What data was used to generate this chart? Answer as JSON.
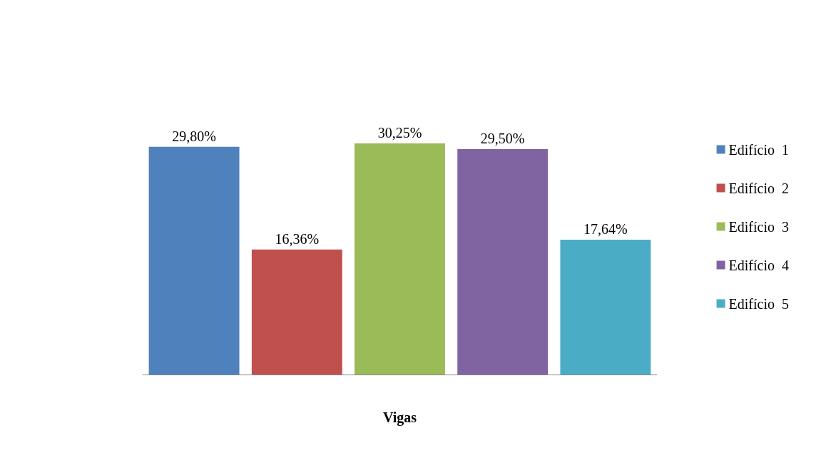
{
  "chart_data": {
    "type": "bar",
    "xlabel": "Vigas",
    "categories": [
      null,
      null,
      null,
      null,
      null
    ],
    "stacked": true,
    "legend": "right",
    "series": [
      {
        "name": "Edifício  1",
        "color": "#4f81bd",
        "values": [
          29.8,
          null,
          null,
          null,
          null
        ],
        "value_labels": [
          "29,80%",
          null,
          null,
          null,
          null
        ]
      },
      {
        "name": "Edifício  2",
        "color": "#c0504d",
        "values": [
          null,
          16.36,
          null,
          null,
          null
        ],
        "value_labels": [
          null,
          "16,36%",
          null,
          null,
          null
        ]
      },
      {
        "name": "Edifício  3",
        "color": "#9bbb59",
        "values": [
          null,
          null,
          30.25,
          null,
          null
        ],
        "value_labels": [
          null,
          null,
          "30,25%",
          null,
          null
        ]
      },
      {
        "name": "Edifício  4",
        "color": "#8064a2",
        "values": [
          null,
          null,
          null,
          29.5,
          null
        ],
        "value_labels": [
          null,
          null,
          null,
          "29,50%",
          null
        ]
      },
      {
        "name": "Edifício  5",
        "color": "#4bacc6",
        "values": [
          null,
          null,
          null,
          null,
          17.64
        ],
        "value_labels": [
          null,
          null,
          null,
          null,
          "17,64%"
        ]
      }
    ]
  }
}
